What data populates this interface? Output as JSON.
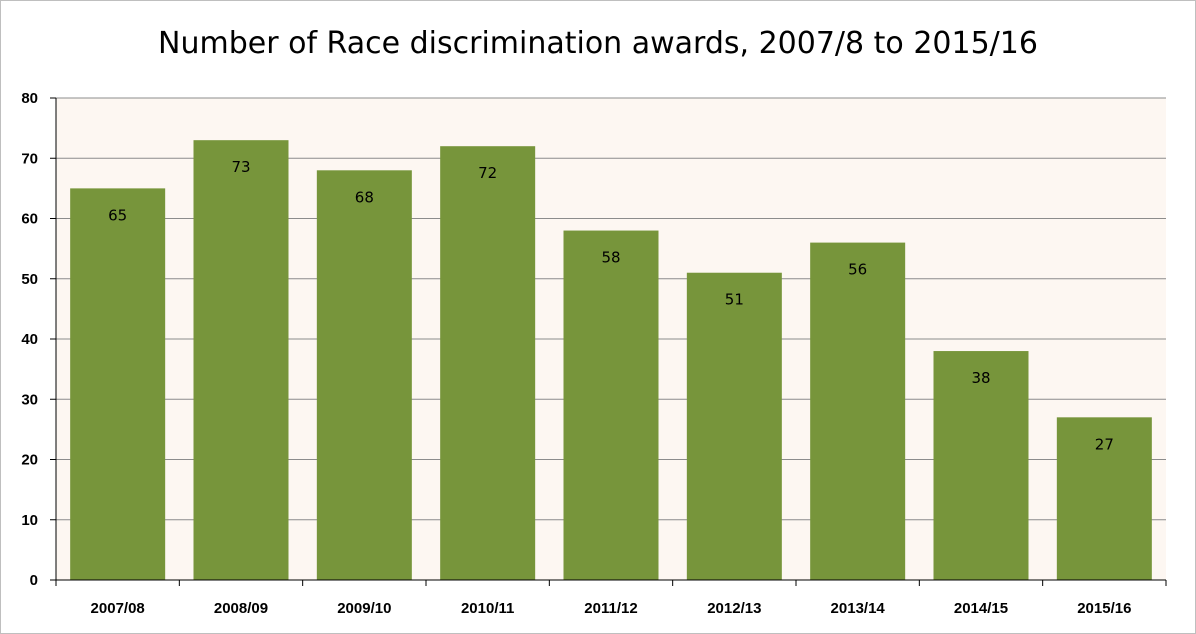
{
  "chart_data": {
    "type": "bar",
    "title": "Number of Race discrimination awards, 2007/8 to 2015/16",
    "categories": [
      "2007/08",
      "2008/09",
      "2009/10",
      "2010/11",
      "2011/12",
      "2012/13",
      "2013/14",
      "2014/15",
      "2015/16"
    ],
    "values": [
      65,
      73,
      68,
      72,
      58,
      51,
      56,
      38,
      27
    ],
    "data_labels": [
      "65",
      "73",
      "68",
      "72",
      "58",
      "51",
      "56",
      "38",
      "27"
    ],
    "ylim": [
      0,
      80
    ],
    "yticks": [
      0,
      10,
      20,
      30,
      40,
      50,
      60,
      70,
      80
    ],
    "ytick_labels": [
      "0",
      "10",
      "20",
      "30",
      "40",
      "50",
      "60",
      "70",
      "80"
    ],
    "grid": true,
    "legend": "none",
    "colors": {
      "bar": "#77953b",
      "plot_background": "#fdf7f2",
      "grid": "#8c8c8c"
    }
  }
}
